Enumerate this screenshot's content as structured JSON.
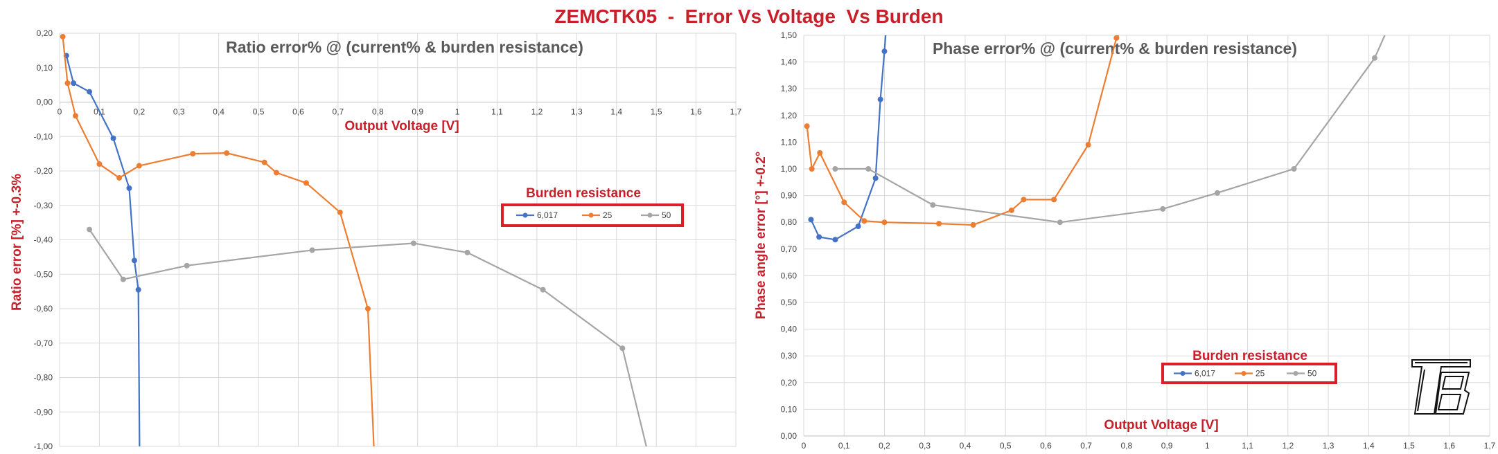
{
  "title": "ZEMCTK05  -  Error Vs Voltage  Vs Burden",
  "colors": {
    "6,017": "#4472c4",
    "25": "#ed7d31",
    "50": "#a5a5a5",
    "accent": "#c8202a",
    "legend_border": "#d9202a"
  },
  "chart_data": [
    {
      "type": "line",
      "title": "Ratio error% @ (current% & burden resistance)",
      "xlabel": "Output Voltage [V]",
      "ylabel": "Ratio error [%] +-0.3%",
      "xlim": [
        0,
        1.7
      ],
      "ylim": [
        -1.0,
        0.2
      ],
      "x_ticks": [
        "0",
        "0,1",
        "0,2",
        "0,3",
        "0,4",
        "0,5",
        "0,6",
        "0,7",
        "0,8",
        "0,9",
        "1",
        "1,1",
        "1,2",
        "1,3",
        "1,4",
        "1,5",
        "1,6",
        "1,7"
      ],
      "y_ticks": [
        "0,20",
        "0,10",
        "0,00",
        "-0,10",
        "-0,20",
        "-0,30",
        "-0,40",
        "-0,50",
        "-0,60",
        "-0,70",
        "-0,80",
        "-0,90",
        "-1,00"
      ],
      "grid": true,
      "legend": {
        "title": "Burden resistance",
        "position": "right"
      },
      "series": [
        {
          "name": "6,017",
          "x": [
            0.017,
            0.035,
            0.075,
            0.135,
            0.175,
            0.188,
            0.198
          ],
          "y": [
            0.135,
            0.055,
            0.03,
            -0.105,
            -0.25,
            -0.46,
            -0.545
          ],
          "trailing": [
            0.201,
            -1.0
          ]
        },
        {
          "name": "25",
          "x": [
            0.008,
            0.02,
            0.04,
            0.1,
            0.15,
            0.2,
            0.335,
            0.42,
            0.515,
            0.545,
            0.62,
            0.705,
            0.775
          ],
          "y": [
            0.19,
            0.055,
            -0.04,
            -0.18,
            -0.22,
            -0.185,
            -0.15,
            -0.148,
            -0.175,
            -0.205,
            -0.235,
            -0.32,
            -0.6
          ],
          "trailing": [
            0.79,
            -1.0
          ]
        },
        {
          "name": "50",
          "x": [
            0.075,
            0.16,
            0.32,
            0.635,
            0.89,
            1.025,
            1.215,
            1.415
          ],
          "y": [
            -0.37,
            -0.515,
            -0.475,
            -0.43,
            -0.41,
            -0.437,
            -0.545,
            -0.715
          ],
          "trailing": [
            1.475,
            -1.0
          ]
        }
      ]
    },
    {
      "type": "line",
      "title": "Phase error% @ (current% & burden resistance)",
      "xlabel": "Output Voltage [V]",
      "ylabel": "Phase angle error [°] +-0.2°",
      "xlim": [
        0,
        1.7
      ],
      "ylim": [
        0,
        1.5
      ],
      "x_ticks": [
        "0",
        "0,1",
        "0,2",
        "0,3",
        "0,4",
        "0,5",
        "0,6",
        "0,7",
        "0,8",
        "0,9",
        "1",
        "1,1",
        "1,2",
        "1,3",
        "1,4",
        "1,5",
        "1,6",
        "1,7"
      ],
      "y_ticks": [
        "1,50",
        "1,40",
        "1,30",
        "1,20",
        "1,10",
        "1,00",
        "0,90",
        "0,80",
        "0,70",
        "0,60",
        "0,50",
        "0,40",
        "0,30",
        "0,20",
        "0,10",
        "0,00"
      ],
      "grid": true,
      "legend": {
        "title": "Burden resistance",
        "position": "bottom-right"
      },
      "series": [
        {
          "name": "6,017",
          "x": [
            0.018,
            0.038,
            0.078,
            0.135,
            0.178,
            0.19,
            0.2
          ],
          "y": [
            0.81,
            0.745,
            0.735,
            0.785,
            0.965,
            1.26,
            1.44
          ],
          "trailing": [
            0.203,
            1.5
          ]
        },
        {
          "name": "25",
          "x": [
            0.008,
            0.02,
            0.04,
            0.1,
            0.15,
            0.2,
            0.335,
            0.42,
            0.515,
            0.545,
            0.62,
            0.705,
            0.775
          ],
          "y": [
            1.16,
            1.0,
            1.06,
            0.875,
            0.805,
            0.8,
            0.795,
            0.79,
            0.845,
            0.885,
            0.885,
            1.09,
            1.49
          ],
          "trailing": [
            0.78,
            1.5
          ]
        },
        {
          "name": "50",
          "x": [
            0.078,
            0.16,
            0.32,
            0.635,
            0.89,
            1.025,
            1.215,
            1.415
          ],
          "y": [
            1.0,
            1.0,
            0.865,
            0.8,
            0.85,
            0.91,
            1.0,
            1.415
          ],
          "trailing": [
            1.44,
            1.5
          ]
        }
      ]
    }
  ]
}
